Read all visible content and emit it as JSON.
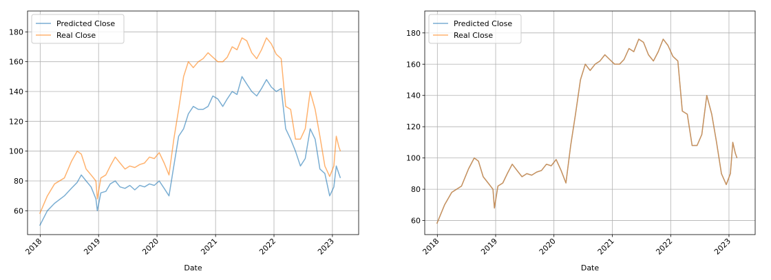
{
  "chart_data": [
    {
      "type": "line",
      "xlabel": "Date",
      "ylabel": "",
      "x_ticks": [
        "2018",
        "2019",
        "2020",
        "2021",
        "2022",
        "2023"
      ],
      "y_ticks": [
        60,
        80,
        100,
        120,
        140,
        160,
        180
      ],
      "xlim": [
        "2017-10-14",
        "2023-06-14"
      ],
      "ylim": [
        44,
        194
      ],
      "grid": true,
      "legend_position": "top-left",
      "x": [
        "2017-12-29",
        "2018-02-15",
        "2018-04-01",
        "2018-06-01",
        "2018-07-15",
        "2018-08-20",
        "2018-09-15",
        "2018-10-15",
        "2018-11-15",
        "2018-12-15",
        "2018-12-24",
        "2019-01-15",
        "2019-02-15",
        "2019-03-15",
        "2019-04-15",
        "2019-05-15",
        "2019-06-15",
        "2019-07-15",
        "2019-08-15",
        "2019-09-15",
        "2019-10-15",
        "2019-11-15",
        "2019-12-15",
        "2020-01-15",
        "2020-02-15",
        "2020-03-16",
        "2020-04-15",
        "2020-05-15",
        "2020-06-15",
        "2020-07-15",
        "2020-08-15",
        "2020-09-15",
        "2020-10-15",
        "2020-11-15",
        "2020-12-15",
        "2021-01-15",
        "2021-02-15",
        "2021-03-15",
        "2021-04-15",
        "2021-05-15",
        "2021-06-15",
        "2021-07-15",
        "2021-08-15",
        "2021-09-15",
        "2021-10-15",
        "2021-11-15",
        "2021-12-15",
        "2022-01-15",
        "2022-02-15",
        "2022-03-15",
        "2022-04-15",
        "2022-05-15",
        "2022-06-15",
        "2022-07-15",
        "2022-08-15",
        "2022-09-15",
        "2022-10-15",
        "2022-11-15",
        "2022-12-15",
        "2023-01-10",
        "2023-01-25",
        "2023-02-10",
        "2023-02-20"
      ],
      "series": [
        {
          "name": "Predicted Close",
          "color": "#1f77b4",
          "values": [
            50,
            60,
            65,
            70,
            75,
            79,
            84,
            80,
            76,
            68,
            60,
            72,
            73,
            78,
            80,
            76,
            75,
            77,
            74,
            77,
            76,
            78,
            77,
            80,
            75,
            70,
            90,
            110,
            115,
            125,
            130,
            128,
            128,
            130,
            137,
            135,
            130,
            135,
            140,
            138,
            150,
            145,
            140,
            137,
            142,
            148,
            143,
            140,
            142,
            115,
            108,
            100,
            90,
            95,
            115,
            108,
            88,
            85,
            70,
            76,
            90,
            85,
            82
          ]
        },
        {
          "name": "Real Close",
          "color": "#ff7f0e",
          "values": [
            58,
            70,
            78,
            82,
            93,
            100,
            98,
            88,
            84,
            80,
            68,
            82,
            84,
            90,
            96,
            92,
            88,
            90,
            89,
            91,
            92,
            96,
            95,
            99,
            92,
            84,
            108,
            128,
            150,
            160,
            156,
            160,
            162,
            166,
            163,
            160,
            160,
            163,
            170,
            168,
            176,
            174,
            166,
            162,
            168,
            176,
            172,
            165,
            162,
            130,
            128,
            108,
            108,
            115,
            140,
            128,
            110,
            90,
            83,
            90,
            110,
            103,
            100
          ]
        }
      ]
    },
    {
      "type": "line",
      "xlabel": "Date",
      "ylabel": "",
      "x_ticks": [
        "2018",
        "2019",
        "2020",
        "2021",
        "2022",
        "2023"
      ],
      "y_ticks": [
        60,
        80,
        100,
        120,
        140,
        160,
        180
      ],
      "xlim": [
        "2017-10-14",
        "2023-06-14"
      ],
      "ylim": [
        51,
        194
      ],
      "grid": true,
      "legend_position": "top-left",
      "x": [
        "2017-12-29",
        "2018-02-15",
        "2018-04-01",
        "2018-06-01",
        "2018-07-15",
        "2018-08-20",
        "2018-09-15",
        "2018-10-15",
        "2018-11-15",
        "2018-12-15",
        "2018-12-24",
        "2019-01-15",
        "2019-02-15",
        "2019-03-15",
        "2019-04-15",
        "2019-05-15",
        "2019-06-15",
        "2019-07-15",
        "2019-08-15",
        "2019-09-15",
        "2019-10-15",
        "2019-11-15",
        "2019-12-15",
        "2020-01-15",
        "2020-02-15",
        "2020-03-16",
        "2020-04-15",
        "2020-05-15",
        "2020-06-15",
        "2020-07-15",
        "2020-08-15",
        "2020-09-15",
        "2020-10-15",
        "2020-11-15",
        "2020-12-15",
        "2021-01-15",
        "2021-02-15",
        "2021-03-15",
        "2021-04-15",
        "2021-05-15",
        "2021-06-15",
        "2021-07-15",
        "2021-08-15",
        "2021-09-15",
        "2021-10-15",
        "2021-11-15",
        "2021-12-15",
        "2022-01-15",
        "2022-02-15",
        "2022-03-15",
        "2022-04-15",
        "2022-05-15",
        "2022-06-15",
        "2022-07-15",
        "2022-08-15",
        "2022-09-15",
        "2022-10-15",
        "2022-11-15",
        "2022-12-15",
        "2023-01-10",
        "2023-01-25",
        "2023-02-10",
        "2023-02-20"
      ],
      "series": [
        {
          "name": "Predicted Close",
          "color": "#1f77b4",
          "values": [
            58,
            70,
            78,
            82,
            93,
            100,
            98,
            88,
            84,
            80,
            68,
            82,
            84,
            90,
            96,
            92,
            88,
            90,
            89,
            91,
            92,
            96,
            95,
            99,
            92,
            84,
            108,
            128,
            150,
            160,
            156,
            160,
            162,
            166,
            163,
            160,
            160,
            163,
            170,
            168,
            176,
            174,
            166,
            162,
            168,
            176,
            172,
            165,
            162,
            130,
            128,
            108,
            108,
            115,
            140,
            128,
            110,
            90,
            83,
            90,
            110,
            103,
            100
          ]
        },
        {
          "name": "Real Close",
          "color": "#ff7f0e",
          "values": [
            58,
            70,
            78,
            82,
            93,
            100,
            98,
            88,
            84,
            80,
            68,
            82,
            84,
            90,
            96,
            92,
            88,
            90,
            89,
            91,
            92,
            96,
            95,
            99,
            92,
            84,
            108,
            128,
            150,
            160,
            156,
            160,
            162,
            166,
            163,
            160,
            160,
            163,
            170,
            168,
            176,
            174,
            166,
            162,
            168,
            176,
            172,
            165,
            162,
            130,
            128,
            108,
            108,
            115,
            140,
            128,
            110,
            90,
            83,
            90,
            110,
            103,
            100
          ]
        }
      ]
    }
  ]
}
